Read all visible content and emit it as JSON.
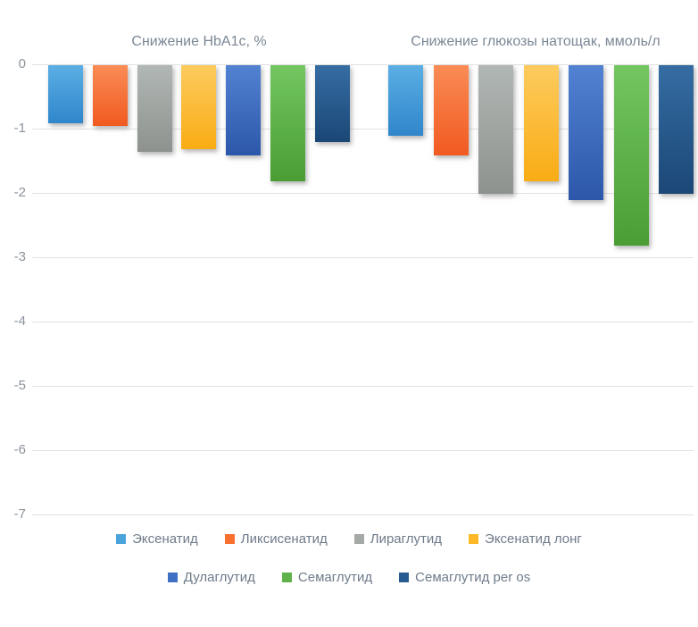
{
  "chart_data": {
    "type": "bar",
    "categories": [
      "Снижение HbA1c, %",
      "Снижение глюкозы натощак, ммоль/л"
    ],
    "series": [
      {
        "name": "Эксенатид",
        "color": "#4BA3DC",
        "gradient_top": "#5BAFE4",
        "gradient_bottom": "#2F86CB",
        "values": [
          -0.9,
          -1.1
        ]
      },
      {
        "name": "Ликсисенатид",
        "color": "#F8702F",
        "gradient_top": "#FA8C55",
        "gradient_bottom": "#F15A21",
        "values": [
          -0.95,
          -1.4
        ]
      },
      {
        "name": "Лираглутид",
        "color": "#A5A9A6",
        "gradient_top": "#B1B7B4",
        "gradient_bottom": "#8D928E",
        "values": [
          -1.35,
          -2.0
        ]
      },
      {
        "name": "Эксенатид лонг",
        "color": "#FCB827",
        "gradient_top": "#FDCB5E",
        "gradient_bottom": "#F9AC14",
        "values": [
          -1.3,
          -1.8
        ]
      },
      {
        "name": "Дулаглутид",
        "color": "#3E70C3",
        "gradient_top": "#5282D2",
        "gradient_bottom": "#2C57AA",
        "values": [
          -1.4,
          -2.1
        ]
      },
      {
        "name": "Семаглутид",
        "color": "#5FB24A",
        "gradient_top": "#73C661",
        "gradient_bottom": "#4A9D33",
        "values": [
          -1.8,
          -2.8
        ]
      },
      {
        "name": "Семаглутид per os",
        "color": "#265C91",
        "gradient_top": "#356DA3",
        "gradient_bottom": "#1B4776",
        "values": [
          -1.2,
          -2.0
        ]
      }
    ],
    "ylim": [
      0,
      -7
    ],
    "yticks": [
      "0",
      "-1",
      "-2",
      "-3",
      "-4",
      "-5",
      "-6",
      "-7"
    ],
    "grid": true,
    "legend_position": "bottom",
    "legend_rows": [
      [
        0,
        1,
        2,
        3
      ],
      [
        4,
        5,
        6
      ]
    ]
  },
  "colors": {
    "background": "#FFFFFF",
    "gridline": "#E2E2E2",
    "tick_label": "#8C949D",
    "group_title": "#7B8795",
    "legend_text": "#6E7B8A"
  }
}
